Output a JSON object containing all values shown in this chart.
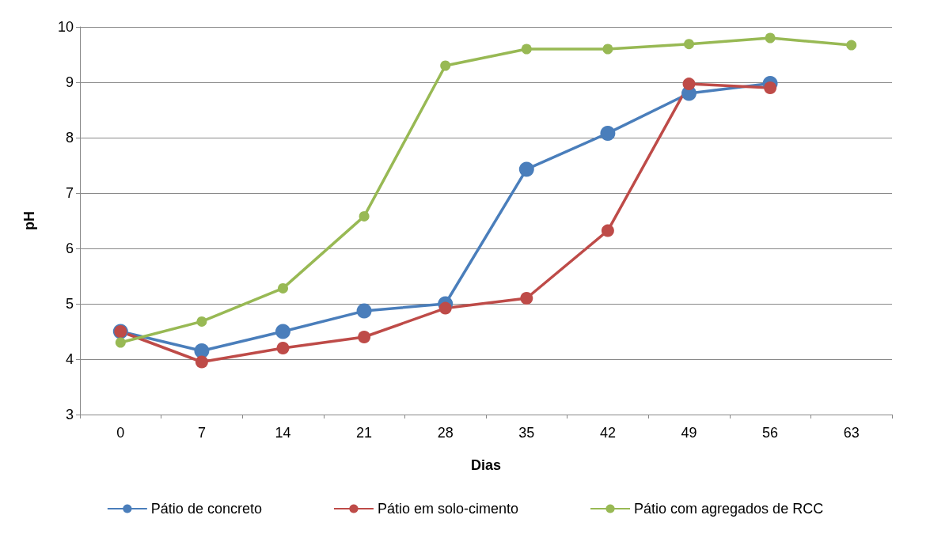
{
  "chart_data": {
    "type": "line",
    "xlabel": "Dias",
    "ylabel": "pH",
    "categories": [
      "0",
      "7",
      "14",
      "21",
      "28",
      "35",
      "42",
      "49",
      "56",
      "63"
    ],
    "series": [
      {
        "name": "Pátio de concreto",
        "color": "#4a7ebb",
        "values": [
          4.5,
          4.15,
          4.5,
          4.87,
          5.0,
          7.43,
          8.08,
          8.8,
          8.98,
          null
        ]
      },
      {
        "name": "Pátio em solo-cimento",
        "color": "#be4b48",
        "values": [
          4.5,
          3.95,
          4.2,
          4.4,
          4.92,
          5.1,
          6.32,
          8.97,
          8.9,
          null
        ]
      },
      {
        "name": "Pátio com agregados de RCC",
        "color": "#98b954",
        "values": [
          4.3,
          4.68,
          5.28,
          6.58,
          9.3,
          9.6,
          9.6,
          9.69,
          9.8,
          9.67
        ]
      }
    ],
    "ylim": [
      3,
      10
    ],
    "yticks": [
      3,
      4,
      5,
      6,
      7,
      8,
      9,
      10
    ],
    "grid": "y",
    "legend": "bottom",
    "marker": "circle",
    "line_style": "solid"
  }
}
